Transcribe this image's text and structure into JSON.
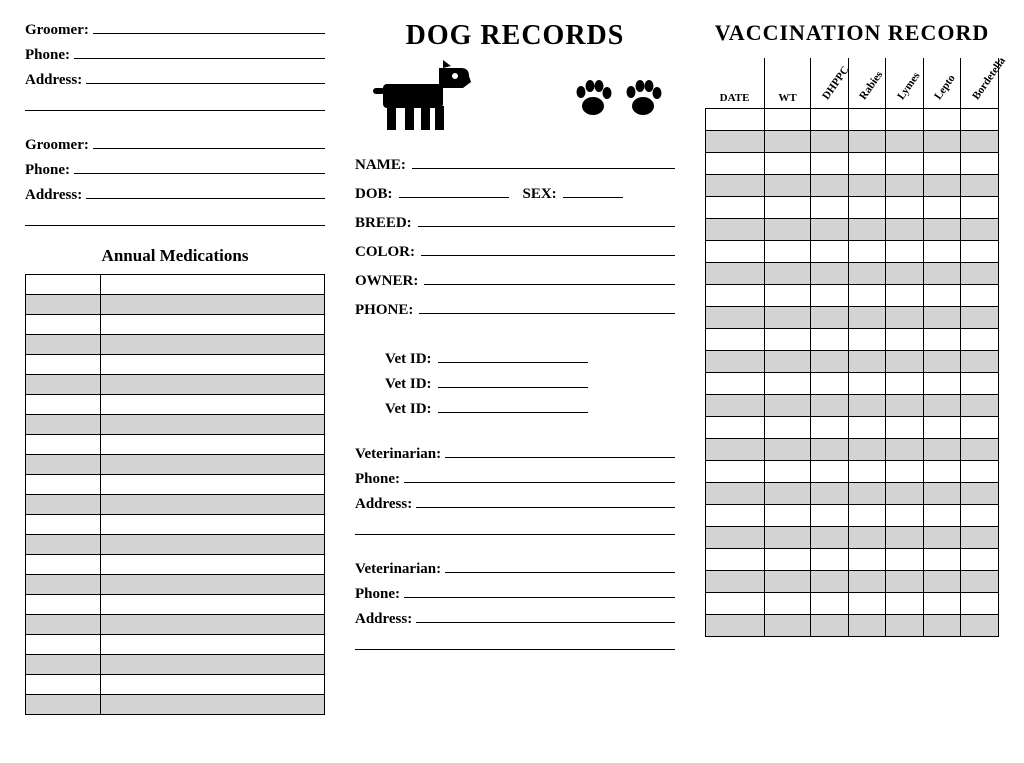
{
  "left": {
    "groomer_blocks": [
      {
        "groomer": "Groomer:",
        "phone": "Phone:",
        "address": "Address:"
      },
      {
        "groomer": "Groomer:",
        "phone": "Phone:",
        "address": "Address:"
      }
    ],
    "med_title": "Annual Medications",
    "med_rows": 22,
    "med_alt_color": "#d3d3d3"
  },
  "mid": {
    "title": "DOG RECORDS",
    "fields": {
      "name": "NAME:",
      "dob": "DOB:",
      "sex": "SEX:",
      "breed": "BREED:",
      "color": "COLOR:",
      "owner": "OWNER:",
      "phone": "PHONE:"
    },
    "vet_id_label": "Vet ID:",
    "vet_id_count": 3,
    "vet_blocks": [
      {
        "vet": "Veterinarian:",
        "phone": "Phone:",
        "address": "Address:"
      },
      {
        "vet": "Veterinarian:",
        "phone": "Phone:",
        "address": "Address:"
      }
    ]
  },
  "right": {
    "title": "VACCINATION RECORD",
    "headers_flat": [
      "DATE",
      "WT"
    ],
    "headers_rot": [
      "DHPPC",
      "Rabies",
      "Lymes",
      "Lepto",
      "Bordetella"
    ],
    "rows": 24,
    "alt_color": "#d3d3d3"
  },
  "colors": {
    "background": "#ffffff",
    "text": "#000000",
    "border": "#000000",
    "row_alt": "#d3d3d3"
  }
}
